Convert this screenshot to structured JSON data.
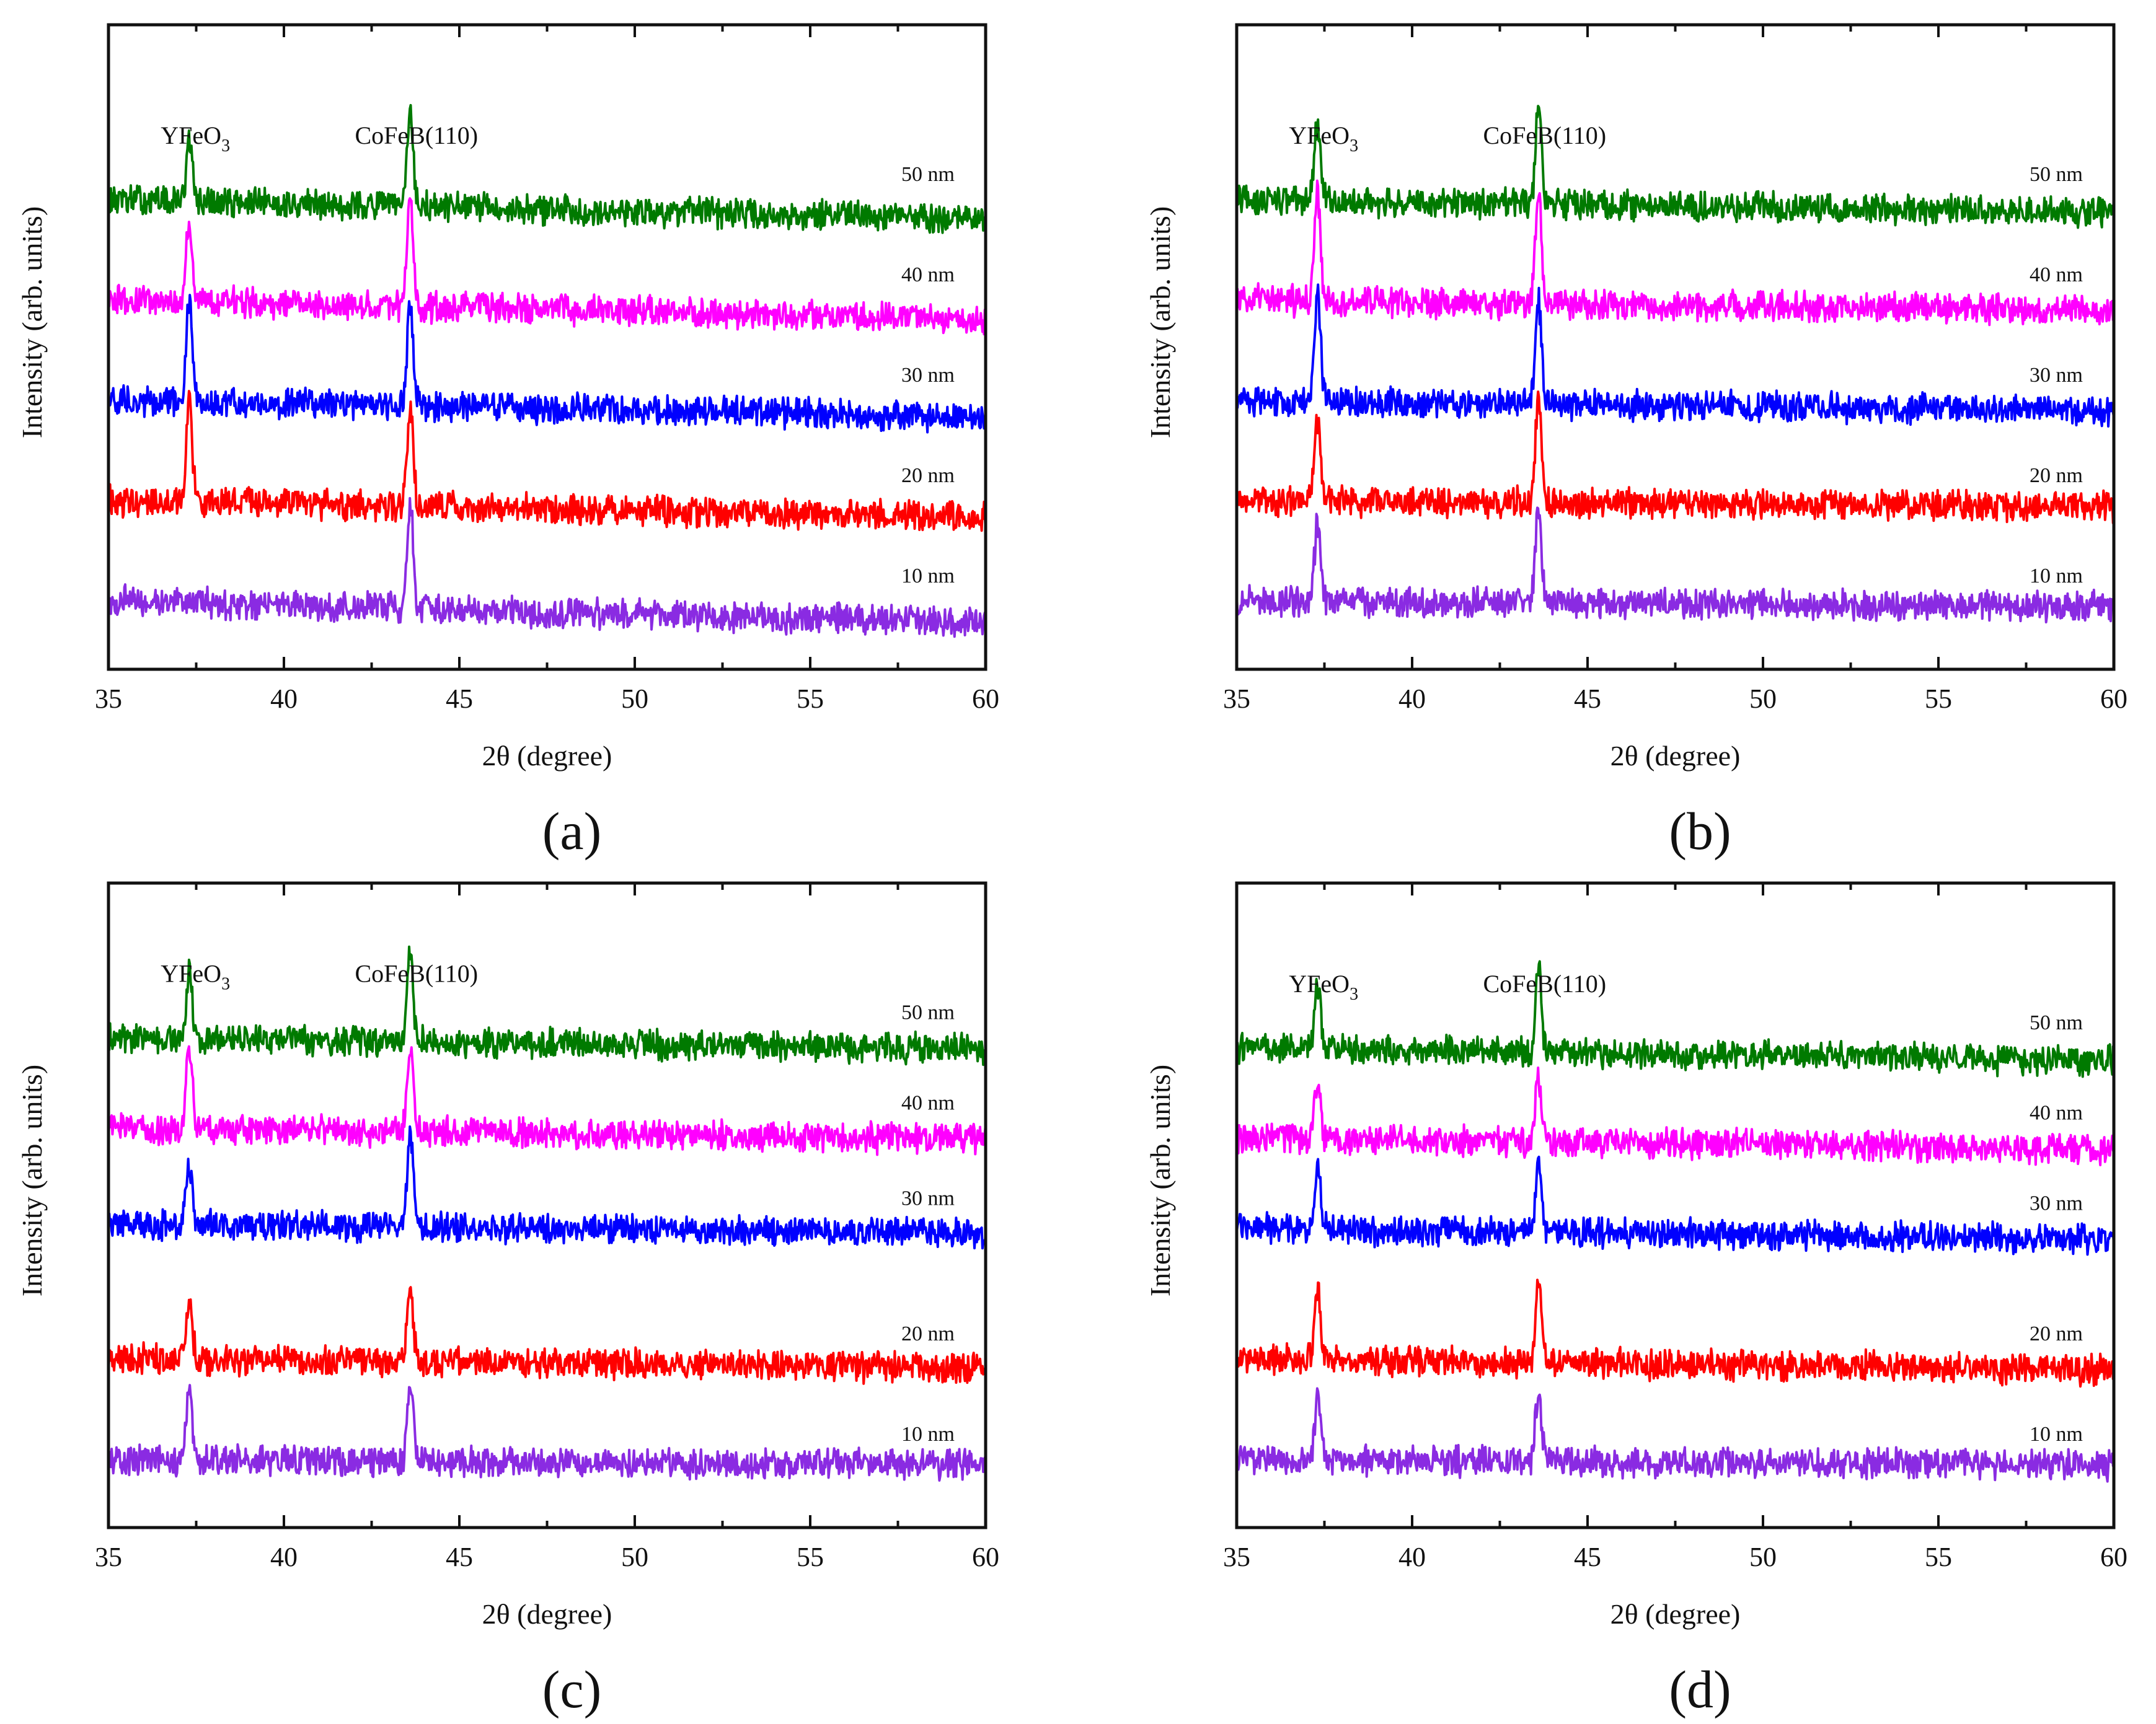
{
  "chart_data": [
    {
      "type": "line",
      "panel": "(a)",
      "xlabel": "2θ (degree)",
      "ylabel": "Intensity (arb. units)",
      "xlim": [
        35,
        60
      ],
      "xticks": [
        35,
        40,
        45,
        50,
        55,
        60
      ],
      "annotations": [
        {
          "text": "YFeO",
          "sub": "3",
          "x": 37.3
        },
        {
          "text": "CoFeB(110)",
          "x": 43.6
        }
      ],
      "series": [
        {
          "name": "50 nm",
          "color": "#007a00",
          "offset": 4,
          "peaks": [
            {
              "x": 37.3,
              "h": 0.55
            },
            {
              "x": 43.6,
              "h": 0.85
            }
          ],
          "slope": 0.18
        },
        {
          "name": "40 nm",
          "color": "#ff00ff",
          "offset": 3,
          "peaks": [
            {
              "x": 37.3,
              "h": 0.75
            },
            {
              "x": 43.6,
              "h": 1.0
            }
          ],
          "slope": 0.18
        },
        {
          "name": "30 nm",
          "color": "#0000ff",
          "offset": 2,
          "peaks": [
            {
              "x": 37.3,
              "h": 0.95
            },
            {
              "x": 43.6,
              "h": 0.95
            }
          ],
          "slope": 0.15
        },
        {
          "name": "20 nm",
          "color": "#ff0000",
          "offset": 1,
          "peaks": [
            {
              "x": 37.3,
              "h": 0.95
            },
            {
              "x": 43.6,
              "h": 0.95
            }
          ],
          "slope": 0.15
        },
        {
          "name": "10 nm",
          "color": "#8a2be2",
          "offset": 0,
          "peaks": [
            {
              "x": 43.6,
              "h": 0.95
            }
          ],
          "slope": 0.2
        }
      ]
    },
    {
      "type": "line",
      "panel": "(b)",
      "xlabel": "2θ (degree)",
      "ylabel": "Intensity (arb. units)",
      "xlim": [
        35,
        60
      ],
      "xticks": [
        35,
        40,
        45,
        50,
        55,
        60
      ],
      "annotations": [
        {
          "text": "YFeO",
          "sub": "3",
          "x": 37.3
        },
        {
          "text": "CoFeB(110)",
          "x": 43.6
        }
      ],
      "series": [
        {
          "name": "50 nm",
          "color": "#007a00",
          "offset": 4,
          "peaks": [
            {
              "x": 37.3,
              "h": 0.7
            },
            {
              "x": 43.6,
              "h": 0.9
            }
          ],
          "slope": 0.12
        },
        {
          "name": "40 nm",
          "color": "#ff00ff",
          "offset": 3,
          "peaks": [
            {
              "x": 37.3,
              "h": 1.0
            },
            {
              "x": 43.6,
              "h": 1.0
            }
          ],
          "slope": 0.1
        },
        {
          "name": "30 nm",
          "color": "#0000ff",
          "offset": 2,
          "peaks": [
            {
              "x": 37.3,
              "h": 1.0
            },
            {
              "x": 43.6,
              "h": 0.95
            }
          ],
          "slope": 0.1
        },
        {
          "name": "20 nm",
          "color": "#ff0000",
          "offset": 1,
          "peaks": [
            {
              "x": 37.3,
              "h": 0.75
            },
            {
              "x": 43.6,
              "h": 0.95
            }
          ],
          "slope": 0.05
        },
        {
          "name": "10 nm",
          "color": "#8a2be2",
          "offset": 0,
          "peaks": [
            {
              "x": 37.3,
              "h": 0.7
            },
            {
              "x": 43.6,
              "h": 0.85
            }
          ],
          "slope": 0.05
        }
      ]
    },
    {
      "type": "line",
      "panel": "(c)",
      "xlabel": "2θ (degree)",
      "ylabel": "Intensity (arb. units)",
      "xlim": [
        35,
        60
      ],
      "xticks": [
        35,
        40,
        45,
        50,
        55,
        60
      ],
      "annotations": [
        {
          "text": "YFeO",
          "sub": "3",
          "x": 37.3
        },
        {
          "text": "CoFeB(110)",
          "x": 43.6
        }
      ],
      "series": [
        {
          "name": "50 nm",
          "color": "#007a00",
          "offset": 4.2,
          "peaks": [
            {
              "x": 37.3,
              "h": 0.6
            },
            {
              "x": 43.6,
              "h": 0.8
            }
          ],
          "slope": 0.1
        },
        {
          "name": "40 nm",
          "color": "#ff00ff",
          "offset": 3.3,
          "peaks": [
            {
              "x": 37.3,
              "h": 0.75
            },
            {
              "x": 43.6,
              "h": 0.8
            }
          ],
          "slope": 0.1
        },
        {
          "name": "30 nm",
          "color": "#0000ff",
          "offset": 2.35,
          "peaks": [
            {
              "x": 37.3,
              "h": 0.55
            },
            {
              "x": 43.6,
              "h": 0.85
            }
          ],
          "slope": 0.1
        },
        {
          "name": "20 nm",
          "color": "#ff0000",
          "offset": 1.0,
          "peaks": [
            {
              "x": 37.3,
              "h": 0.55
            },
            {
              "x": 43.6,
              "h": 0.65
            }
          ],
          "slope": 0.08
        },
        {
          "name": "10 nm",
          "color": "#8a2be2",
          "offset": 0,
          "peaks": [
            {
              "x": 37.3,
              "h": 0.65
            },
            {
              "x": 43.6,
              "h": 0.7
            }
          ],
          "slope": 0.05
        }
      ]
    },
    {
      "type": "line",
      "panel": "(d)",
      "xlabel": "2θ (degree)",
      "ylabel": "Intensity (arb. units)",
      "xlim": [
        35,
        60
      ],
      "xticks": [
        35,
        40,
        45,
        50,
        55,
        60
      ],
      "annotations": [
        {
          "text": "YFeO",
          "sub": "3",
          "x": 37.3
        },
        {
          "text": "CoFeB(110)",
          "x": 43.6
        }
      ],
      "series": [
        {
          "name": "50 nm",
          "color": "#007a00",
          "offset": 4.1,
          "peaks": [
            {
              "x": 37.3,
              "h": 0.55
            },
            {
              "x": 43.6,
              "h": 0.8
            }
          ],
          "slope": 0.12
        },
        {
          "name": "40 nm",
          "color": "#ff00ff",
          "offset": 3.2,
          "peaks": [
            {
              "x": 37.3,
              "h": 0.55
            },
            {
              "x": 43.6,
              "h": 0.6
            }
          ],
          "slope": 0.1
        },
        {
          "name": "30 nm",
          "color": "#0000ff",
          "offset": 2.3,
          "peaks": [
            {
              "x": 37.3,
              "h": 0.6
            },
            {
              "x": 43.6,
              "h": 0.65
            }
          ],
          "slope": 0.1
        },
        {
          "name": "20 nm",
          "color": "#ff0000",
          "offset": 1.0,
          "peaks": [
            {
              "x": 37.3,
              "h": 0.65
            },
            {
              "x": 43.6,
              "h": 0.75
            }
          ],
          "slope": 0.1
        },
        {
          "name": "10 nm",
          "color": "#8a2be2",
          "offset": 0,
          "peaks": [
            {
              "x": 37.3,
              "h": 0.55
            },
            {
              "x": 43.6,
              "h": 0.65
            }
          ],
          "slope": 0.05
        }
      ]
    }
  ]
}
